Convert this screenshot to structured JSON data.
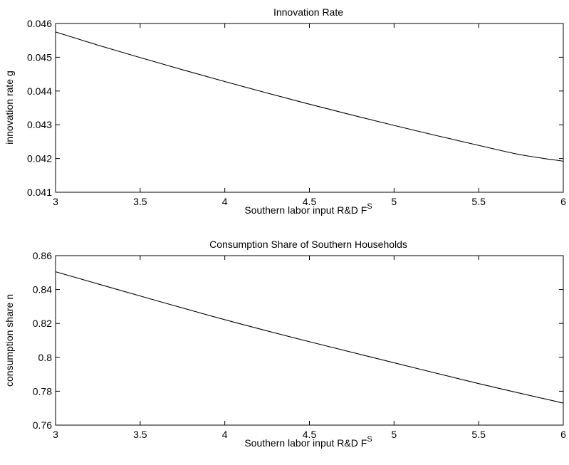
{
  "chart_data": [
    {
      "type": "line",
      "title": "Innovation Rate",
      "xlabel": "Southern labor input R&D F",
      "xlabel_superscript": "S",
      "ylabel": "innovation rate g",
      "xlim": [
        3,
        6
      ],
      "ylim": [
        0.041,
        0.046
      ],
      "xticks": [
        "3",
        "3.5",
        "4",
        "4.5",
        "5",
        "5.5",
        "6"
      ],
      "yticks": [
        "0.041",
        "0.042",
        "0.043",
        "0.044",
        "0.045",
        "0.046"
      ],
      "grid": false,
      "line_color": "#000000",
      "series": [
        {
          "x": [
            3,
            3.25,
            3.5,
            3.75,
            4,
            4.25,
            4.5,
            4.75,
            5,
            5.25,
            5.5,
            5.75,
            6
          ],
          "y": [
            0.04575,
            0.04536,
            0.04499,
            0.04463,
            0.04428,
            0.04394,
            0.04361,
            0.04329,
            0.04298,
            0.04268,
            0.04239,
            0.04211,
            0.04192
          ]
        }
      ]
    },
    {
      "type": "line",
      "title": "Consumption Share of Southern Households",
      "xlabel": "Southern labor input R&D F",
      "xlabel_superscript": "S",
      "ylabel": "consumption share n",
      "xlim": [
        3,
        6
      ],
      "ylim": [
        0.76,
        0.86
      ],
      "xticks": [
        "3",
        "3.5",
        "4",
        "4.5",
        "5",
        "5.5",
        "6"
      ],
      "yticks": [
        "0.76",
        "0.78",
        "0.8",
        "0.82",
        "0.84",
        "0.86"
      ],
      "grid": false,
      "line_color": "#000000",
      "series": [
        {
          "x": [
            3,
            3.5,
            4,
            4.5,
            5,
            5.5,
            6
          ],
          "y": [
            0.8505,
            0.8362,
            0.8222,
            0.8092,
            0.7968,
            0.7845,
            0.773
          ]
        }
      ]
    }
  ]
}
